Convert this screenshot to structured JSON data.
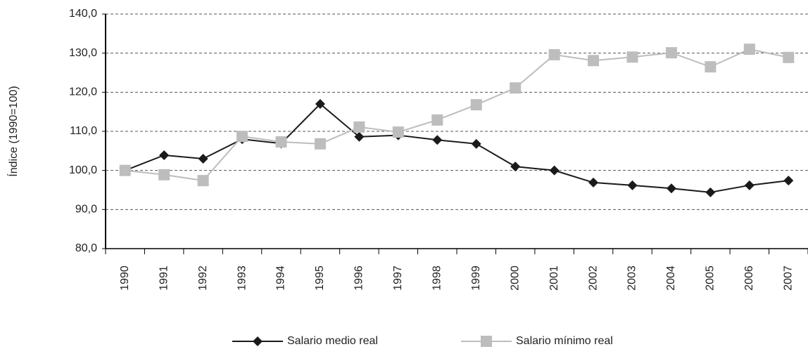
{
  "chart_data": {
    "type": "line",
    "y_label": "Índice (1990=100)",
    "categories": [
      "1990",
      "1991",
      "1992",
      "1993",
      "1994",
      "1995",
      "1996",
      "1997",
      "1998",
      "1999",
      "2000",
      "2001",
      "2002",
      "2003",
      "2004",
      "2005",
      "2006",
      "2007"
    ],
    "series": [
      {
        "name": "Salario medio real",
        "color": "#1a1a1a",
        "marker": "diamond",
        "values": [
          100.0,
          103.9,
          103.0,
          108.0,
          106.9,
          117.0,
          108.6,
          109.0,
          107.8,
          106.8,
          101.0,
          100.0,
          96.9,
          96.2,
          95.4,
          94.4,
          96.2,
          97.4
        ]
      },
      {
        "name": "Salario mínimo real",
        "color": "#bdbdbd",
        "marker": "square",
        "values": [
          100.0,
          98.9,
          97.4,
          108.7,
          107.3,
          106.8,
          111.1,
          109.8,
          112.9,
          116.8,
          121.1,
          129.6,
          128.1,
          129.0,
          130.1,
          126.5,
          131.0,
          128.9
        ]
      }
    ],
    "ylim": [
      80,
      140
    ],
    "yticks": [
      {
        "value": 80,
        "label": "80,0"
      },
      {
        "value": 90,
        "label": "90,0"
      },
      {
        "value": 100,
        "label": "100,0"
      },
      {
        "value": 110,
        "label": "110,0"
      },
      {
        "value": 120,
        "label": "120,0"
      },
      {
        "value": 130,
        "label": "130,0"
      },
      {
        "value": 140,
        "label": "140,0"
      }
    ],
    "grid": true,
    "legend": "bottom"
  }
}
